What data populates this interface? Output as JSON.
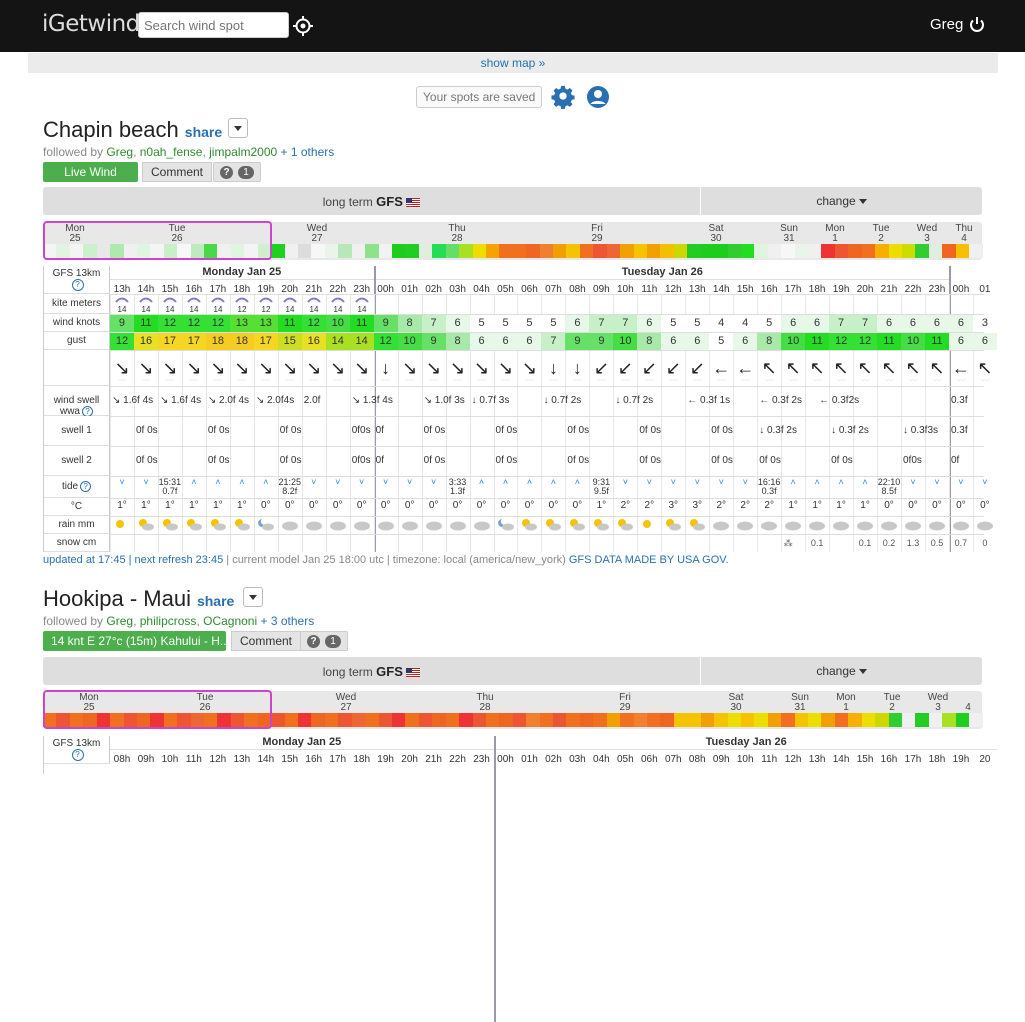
{
  "header": {
    "logo": "iGetwind",
    "search_placeholder": "Search wind spot",
    "user": "Greg"
  },
  "map_toggle": "show map",
  "saved": "Your spots are saved",
  "spots": [
    {
      "name": "Chapin beach",
      "share": "share",
      "followed_prefix": "followed by ",
      "followers": [
        "Greg",
        "n0ah_fense",
        "jimpalm2000"
      ],
      "others": "+ 1 others",
      "live": "Live Wind",
      "comment": "Comment",
      "count": "1",
      "model": "GFS",
      "model_prefix": "long term",
      "change": "change",
      "overview_days": [
        [
          "Mon",
          "25"
        ],
        [
          "Tue",
          "26"
        ],
        [
          "Wed",
          "27"
        ],
        [
          "Thu",
          "28"
        ],
        [
          "Fri",
          "29"
        ],
        [
          "Sat",
          "30"
        ],
        [
          "Sun",
          "31"
        ],
        [
          "Mon",
          "1"
        ],
        [
          "Tue",
          "2"
        ],
        [
          "Wed",
          "3"
        ],
        [
          "Thu",
          "4"
        ]
      ],
      "overview_colors": [
        "#f4f4f4",
        "#e2f3e2",
        "#f4f4f4",
        "#ccf0cc",
        "#e8e8e8",
        "#aeeaae",
        "#f0f0f0",
        "#dff5df",
        "#f4f4f4",
        "#c9efc9",
        "#f7f7f7",
        "#bfeabf",
        "#4ad84a",
        "#f0f0f0",
        "#e0f5e0",
        "#f4f4f4",
        "#cfefcf",
        "#1ed11e",
        "#f0f0f0",
        "#dcdcdc",
        "#f7f7f7",
        "#e8f5e8",
        "#b8e8b8",
        "#f0f0f0",
        "#8ee28e",
        "#f2f2f2",
        "#1dcc1d",
        "#22cc22",
        "#dfefdf",
        "#22dd55",
        "#66dd66",
        "#aae022",
        "#eedd00",
        "#f5a300",
        "#f07020",
        "#f07020",
        "#ee6622",
        "#f08030",
        "#f0a000",
        "#f5c400",
        "#f07020",
        "#ee5533",
        "#ee6633",
        "#f0a000",
        "#f5c300",
        "#f0a000",
        "#f2c000",
        "#ccd800",
        "#22cc22",
        "#1dcc1d",
        "#1dcc1d",
        "#30cc30",
        "#22dd22",
        "#e0f5e0",
        "#f0f0f0",
        "#f7f7f7",
        "#e8f5e8",
        "#f0f0f0",
        "#ee3333",
        "#ee5533",
        "#ee6622",
        "#f07020",
        "#f5b000",
        "#eedd00",
        "#ccdd00",
        "#33cc33",
        "#dfefdf",
        "#ee6622",
        "#f5c000",
        "#f0f0f0"
      ],
      "grid_day_labels": [
        "Monday Jan 25",
        "Tuesday Jan 26"
      ],
      "row_labels": [
        "GFS 13km",
        "kite meters",
        "wind knots",
        "gust",
        "",
        "wind swell wwa",
        "swell 1",
        "swell 2",
        "tide",
        "°C",
        "rain mm",
        "snow cm"
      ],
      "hours": [
        "13h",
        "14h",
        "15h",
        "16h",
        "17h",
        "18h",
        "19h",
        "20h",
        "21h",
        "22h",
        "23h",
        "00h",
        "01h",
        "02h",
        "03h",
        "04h",
        "05h",
        "06h",
        "07h",
        "08h",
        "09h",
        "10h",
        "11h",
        "12h",
        "13h",
        "14h",
        "15h",
        "16h",
        "17h",
        "18h",
        "19h",
        "20h",
        "21h",
        "22h",
        "23h",
        "00h",
        "01"
      ],
      "kite": [
        "14",
        "14",
        "14",
        "14",
        "14",
        "12",
        "12",
        "14",
        "14",
        "14",
        "14",
        "",
        "",
        "",
        "",
        "",
        "",
        "",
        "",
        "",
        "",
        "",
        "",
        "",
        "",
        "",
        "",
        "",
        "",
        "",
        "",
        "",
        "",
        "",
        "",
        "",
        ""
      ],
      "wind": [
        9,
        11,
        12,
        12,
        12,
        13,
        13,
        11,
        12,
        10,
        11,
        9,
        8,
        7,
        6,
        5,
        5,
        5,
        5,
        6,
        7,
        7,
        6,
        5,
        5,
        4,
        4,
        5,
        6,
        6,
        7,
        7,
        6,
        6,
        6,
        6,
        3
      ],
      "gust": [
        12,
        16,
        17,
        17,
        18,
        18,
        17,
        15,
        16,
        14,
        14,
        12,
        10,
        9,
        8,
        6,
        6,
        6,
        7,
        9,
        9,
        10,
        8,
        6,
        6,
        5,
        6,
        8,
        10,
        11,
        12,
        12,
        11,
        10,
        11,
        6,
        6
      ],
      "wind_dir": [
        "↘",
        "↘",
        "↘",
        "↘",
        "↘",
        "↘",
        "↘",
        "↘",
        "↘",
        "↘",
        "↘",
        "↓",
        "↘",
        "↘",
        "↘",
        "↘",
        "↘",
        "↘",
        "↓",
        "↓",
        "↙",
        "↙",
        "↙",
        "↙",
        "↙",
        "←",
        "←",
        "↖",
        "↖",
        "↖",
        "↖",
        "↖",
        "↖",
        "↖",
        "↖",
        "←",
        "↖"
      ],
      "swell_wwa": [
        "↘ 1.6f 4s",
        "",
        "↘ 1.6f 4s",
        "",
        "↘ 2.0f 4s",
        "",
        "↘ 2.0f4s",
        "",
        "2.0f",
        "",
        "↘ 1.3f 4s",
        "",
        "↘ 1.0f 3s",
        "",
        "↓ 0.7f 3s",
        "",
        "↓ 0.7f 2s",
        "",
        "↓ 0.7f 2s",
        "",
        "← 0.3f 1s",
        "",
        "← 0.3f 2s",
        "",
        "← 0.3f2s",
        "0.3f"
      ],
      "swell1": [
        "0f 0s",
        "0f 0s",
        "0f 0s",
        "0f0s",
        "0f",
        "0f 0s",
        "0f 0s",
        "0f 0s",
        "0f 0s",
        "0f 0s",
        "↓ 0.3f 2s",
        "↓ 0.3f 2s",
        "↓ 0.3f3s",
        "0.3f"
      ],
      "swell2": [
        "0f 0s",
        "0f 0s",
        "0f 0s",
        "0f0s",
        "0f",
        "0f 0s",
        "0f 0s",
        "0f 0s",
        "0f 0s",
        "0f 0s",
        "0f 0s",
        "0f 0s",
        "0f0s",
        "0f"
      ],
      "tide": [
        "˅",
        "˅",
        "15:31 0.7f",
        "˄",
        "˄",
        "˄",
        "˄",
        "21:25 8.2f",
        "˅",
        "˅",
        "˅",
        "˅",
        "˅",
        "˅",
        "3:33 1.3f",
        "˄",
        "˄",
        "˄",
        "˄",
        "˄",
        "9:31 9.5f",
        "˅",
        "˅",
        "˅",
        "˅",
        "˅",
        "˅",
        "16:16 0.3f",
        "˄",
        "˄",
        "˄",
        "˄",
        "22:10 8.5f",
        "˅",
        "˅",
        "˅",
        "˅"
      ],
      "temp": [
        "1°",
        "1°",
        "1°",
        "1°",
        "1°",
        "1°",
        "0°",
        "0°",
        "0°",
        "0°",
        "0°",
        "0°",
        "0°",
        "0°",
        "0°",
        "0°",
        "0°",
        "0°",
        "0°",
        "0°",
        "1°",
        "2°",
        "2°",
        "3°",
        "3°",
        "2°",
        "2°",
        "2°",
        "1°",
        "1°",
        "1°",
        "1°",
        "0°",
        "0°",
        "0°",
        "0°",
        "0°"
      ],
      "weather": [
        "sun",
        "sun-cloud",
        "sun-cloud",
        "sun-cloud",
        "sun-cloud",
        "sun-cloud",
        "moon-cloud",
        "cloud",
        "cloud",
        "cloud",
        "cloud",
        "cloud",
        "cloud",
        "cloud",
        "cloud",
        "cloud",
        "moon-cloud",
        "sun-cloud",
        "sun-cloud",
        "sun-cloud",
        "sun-cloud",
        "sun-cloud",
        "sun",
        "sun-cloud",
        "sun-cloud",
        "cloud",
        "cloud",
        "cloud",
        "cloud",
        "cloud",
        "cloud",
        "cloud",
        "cloud",
        "cloud",
        "cloud",
        "cloud",
        "cloud"
      ],
      "snow": [
        "",
        "",
        "",
        "",
        "",
        "",
        "",
        "",
        "",
        "",
        "",
        "",
        "",
        "",
        "",
        "",
        "",
        "",
        "",
        "",
        "",
        "",
        "",
        "",
        "",
        "",
        "",
        "",
        "",
        "0.1",
        "",
        "0.1",
        "0.2",
        "1.3",
        "0.5",
        "0.7",
        "0"
      ],
      "footer": {
        "updated": "updated at 17:45 | next refresh 23:45",
        "rest": " | current model Jan 25 18:00 utc | timezone: local (america/new_york) ",
        "gov": "GFS DATA MADE BY USA GOV."
      }
    },
    {
      "name": "Hookipa - Maui",
      "share": "share",
      "followed_prefix": "followed by ",
      "followers": [
        "Greg",
        "philipcross",
        "OCagnoni"
      ],
      "others": "+ 3 others",
      "live": "14 knt E 27°c (15m)  Kahului - H...",
      "comment": "Comment",
      "count": "1",
      "model": "GFS",
      "model_prefix": "long term",
      "change": "change",
      "overview_days": [
        [
          "Mon",
          "25"
        ],
        [
          "Tue",
          "26"
        ],
        [
          "Wed",
          "27"
        ],
        [
          "Thu",
          "28"
        ],
        [
          "Fri",
          "29"
        ],
        [
          "Sat",
          "30"
        ],
        [
          "Sun",
          "31"
        ],
        [
          "Mon",
          "1"
        ],
        [
          "Tue",
          "2"
        ],
        [
          "Wed",
          "3"
        ],
        [
          "",
          "4"
        ]
      ],
      "overview_colors": [
        "#f07020",
        "#ee5533",
        "#f07020",
        "#ee6622",
        "#ee3333",
        "#f07020",
        "#ee5533",
        "#ee6622",
        "#ee3333",
        "#f07020",
        "#ee5533",
        "#ee6633",
        "#f07020",
        "#ee3333",
        "#ee5533",
        "#f07020",
        "#ee6622",
        "#ee5533",
        "#f07020",
        "#ee3333",
        "#ee6622",
        "#f07020",
        "#ee5533",
        "#ee6633",
        "#f07020",
        "#ee5533",
        "#ee3333",
        "#f07020",
        "#ee5533",
        "#ee6622",
        "#f07020",
        "#ee3333",
        "#ee5533",
        "#f07020",
        "#ee6622",
        "#ee5533",
        "#f08030",
        "#f07020",
        "#ee5533",
        "#f07020",
        "#ee6622",
        "#f07020",
        "#f0a000",
        "#f07020",
        "#f08030",
        "#f07020",
        "#ee6622",
        "#f5c400",
        "#f5c400",
        "#f0a000",
        "#f5c400",
        "#eedd00",
        "#f5c400",
        "#eedd00",
        "#f0a000",
        "#f07020",
        "#f5c400",
        "#eedd00",
        "#f0a000",
        "#f07020",
        "#f5b000",
        "#eedd00",
        "#ccd800",
        "#33cc33",
        "#f0f0f0",
        "#22cc22",
        "#f0f0f0",
        "#aae022",
        "#22cc22",
        "#f0f0f0"
      ],
      "grid_day_labels": [
        "Monday Jan 25",
        "Tuesday Jan 26"
      ],
      "gfs_label": "GFS 13km",
      "hours": [
        "08h",
        "09h",
        "10h",
        "11h",
        "12h",
        "13h",
        "14h",
        "15h",
        "16h",
        "17h",
        "18h",
        "19h",
        "20h",
        "21h",
        "22h",
        "23h",
        "00h",
        "01h",
        "02h",
        "03h",
        "04h",
        "05h",
        "06h",
        "07h",
        "08h",
        "09h",
        "10h",
        "11h",
        "12h",
        "13h",
        "14h",
        "15h",
        "16h",
        "17h",
        "18h",
        "19h",
        "20"
      ]
    }
  ]
}
